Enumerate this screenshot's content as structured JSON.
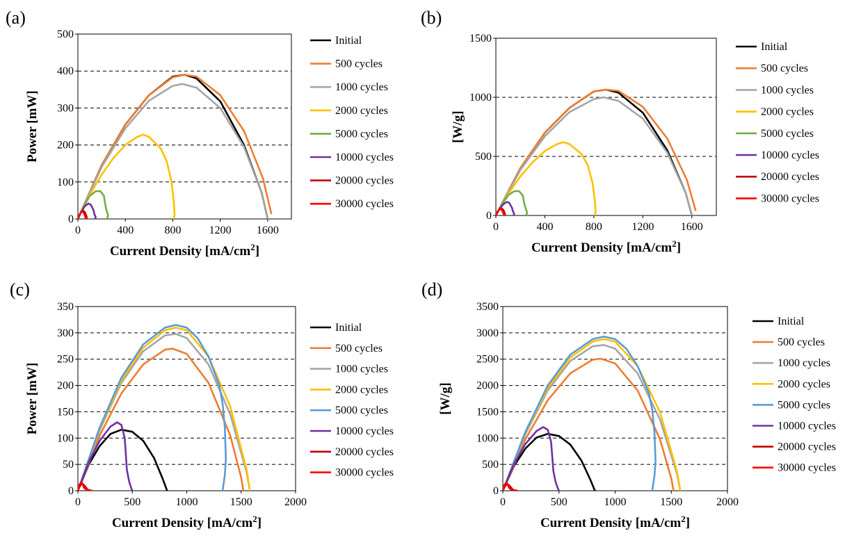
{
  "chart_data": [
    {
      "panel": "(a)",
      "type": "line",
      "title": "",
      "xlabel": "Current Density [mA/cm",
      "xlabel_sup": "2",
      "xlabel_tail": "]",
      "ylabel": "Power [mW]",
      "xlim": [
        0,
        1800
      ],
      "ylim": [
        0,
        500
      ],
      "xticks": [
        0,
        400,
        800,
        1200,
        1600
      ],
      "yticks": [
        0,
        100,
        200,
        300,
        400,
        500
      ],
      "grid": "horizontal dashed",
      "legend": "right",
      "series": [
        {
          "name": "Initial",
          "color": "#000000",
          "x": [
            0,
            200,
            400,
            600,
            800,
            900,
            1000,
            1200,
            1400,
            1550,
            1600
          ],
          "y": [
            0,
            145,
            255,
            335,
            385,
            390,
            380,
            318,
            200,
            70,
            0
          ]
        },
        {
          "name": "500 cycles",
          "color": "#ED7D31",
          "x": [
            0,
            200,
            400,
            600,
            800,
            900,
            1000,
            1200,
            1400,
            1560,
            1630
          ],
          "y": [
            0,
            145,
            255,
            335,
            383,
            390,
            385,
            335,
            238,
            110,
            15
          ]
        },
        {
          "name": "1000 cycles",
          "color": "#A5A5A5",
          "x": [
            0,
            200,
            400,
            600,
            800,
            880,
            1000,
            1200,
            1400,
            1550,
            1600
          ],
          "y": [
            0,
            140,
            245,
            320,
            360,
            365,
            355,
            300,
            195,
            70,
            0
          ]
        },
        {
          "name": "2000 cycles",
          "color": "#FFC000",
          "x": [
            0,
            100,
            200,
            300,
            400,
            500,
            550,
            600,
            700,
            750,
            790,
            810,
            815,
            810,
            805
          ],
          "y": [
            0,
            65,
            120,
            165,
            200,
            222,
            228,
            222,
            190,
            155,
            100,
            40,
            10,
            5,
            0
          ]
        },
        {
          "name": "5000 cycles",
          "color": "#70AD47",
          "x": [
            0,
            50,
            100,
            150,
            190,
            220,
            230,
            240,
            250,
            255,
            250,
            255
          ],
          "y": [
            0,
            35,
            62,
            75,
            75,
            62,
            40,
            25,
            15,
            10,
            5,
            0
          ]
        },
        {
          "name": "10000 cycles",
          "color": "#7030A0",
          "x": [
            0,
            30,
            60,
            90,
            110,
            130,
            140,
            150,
            145
          ],
          "y": [
            0,
            20,
            35,
            42,
            38,
            25,
            12,
            5,
            0
          ]
        },
        {
          "name": "20000 cycles",
          "color": "#C00000",
          "x": [
            0,
            15,
            30,
            45,
            60,
            70,
            75,
            72
          ],
          "y": [
            0,
            12,
            20,
            22,
            18,
            10,
            4,
            0
          ]
        },
        {
          "name": "30000 cycles",
          "color": "#FF0000",
          "x": [
            0,
            12,
            25,
            38,
            50,
            60,
            65,
            62
          ],
          "y": [
            0,
            10,
            18,
            20,
            16,
            8,
            3,
            0
          ]
        }
      ]
    },
    {
      "panel": "(b)",
      "type": "line",
      "title": "",
      "xlabel": "Current Density [mA/cm",
      "xlabel_sup": "2",
      "xlabel_tail": "]",
      "ylabel": "[W/g]",
      "xlim": [
        0,
        1800
      ],
      "ylim": [
        0,
        1500
      ],
      "xticks": [
        0,
        400,
        800,
        1200,
        1600
      ],
      "yticks": [
        0,
        500,
        1000,
        1500
      ],
      "grid": "horizontal dashed",
      "legend": "right",
      "series": [
        {
          "name": "Initial",
          "color": "#000000",
          "x": [
            0,
            200,
            400,
            600,
            800,
            900,
            1000,
            1200,
            1400,
            1550,
            1600
          ],
          "y": [
            0,
            400,
            700,
            910,
            1050,
            1065,
            1040,
            870,
            550,
            190,
            0
          ]
        },
        {
          "name": "500 cycles",
          "color": "#ED7D31",
          "x": [
            0,
            200,
            400,
            600,
            800,
            900,
            1000,
            1200,
            1400,
            1560,
            1630
          ],
          "y": [
            0,
            400,
            700,
            910,
            1050,
            1065,
            1055,
            920,
            650,
            300,
            45
          ]
        },
        {
          "name": "1000 cycles",
          "color": "#A5A5A5",
          "x": [
            0,
            200,
            400,
            600,
            800,
            880,
            1000,
            1200,
            1400,
            1550,
            1600
          ],
          "y": [
            0,
            385,
            670,
            875,
            985,
            1000,
            970,
            820,
            530,
            190,
            0
          ]
        },
        {
          "name": "2000 cycles",
          "color": "#FFC000",
          "x": [
            0,
            100,
            200,
            300,
            400,
            500,
            550,
            600,
            700,
            750,
            790,
            810,
            815,
            810,
            805
          ],
          "y": [
            0,
            180,
            330,
            450,
            545,
            605,
            620,
            605,
            520,
            425,
            275,
            110,
            30,
            12,
            0
          ]
        },
        {
          "name": "5000 cycles",
          "color": "#70AD47",
          "x": [
            0,
            50,
            100,
            150,
            190,
            220,
            230,
            240,
            250,
            255,
            250,
            255
          ],
          "y": [
            0,
            95,
            170,
            205,
            205,
            170,
            110,
            70,
            40,
            25,
            12,
            0
          ]
        },
        {
          "name": "10000 cycles",
          "color": "#7030A0",
          "x": [
            0,
            30,
            60,
            90,
            110,
            130,
            140,
            150,
            145
          ],
          "y": [
            0,
            55,
            95,
            115,
            105,
            68,
            33,
            14,
            0
          ]
        },
        {
          "name": "20000 cycles",
          "color": "#C00000",
          "x": [
            0,
            15,
            30,
            45,
            60,
            70,
            75,
            72
          ],
          "y": [
            0,
            33,
            55,
            60,
            49,
            27,
            11,
            0
          ]
        },
        {
          "name": "30000 cycles",
          "color": "#FF0000",
          "x": [
            0,
            12,
            25,
            38,
            50,
            60,
            65,
            62
          ],
          "y": [
            0,
            27,
            49,
            55,
            44,
            22,
            8,
            0
          ]
        }
      ]
    },
    {
      "panel": "(c)",
      "type": "line",
      "title": "",
      "xlabel": "Current Density [mA/cm",
      "xlabel_sup": "2",
      "xlabel_tail": "]",
      "ylabel": "Power [mW]",
      "xlim": [
        0,
        2000
      ],
      "ylim": [
        0,
        350
      ],
      "xticks": [
        0,
        500,
        1000,
        1500,
        2000
      ],
      "yticks": [
        0,
        50,
        100,
        150,
        200,
        250,
        300,
        350
      ],
      "grid": "horizontal dashed",
      "legend": "right",
      "series": [
        {
          "name": "Initial",
          "color": "#000000",
          "x": [
            0,
            100,
            200,
            300,
            400,
            500,
            600,
            700,
            780,
            820
          ],
          "y": [
            0,
            50,
            85,
            108,
            116,
            112,
            95,
            62,
            22,
            0
          ]
        },
        {
          "name": "500 cycles",
          "color": "#ED7D31",
          "x": [
            0,
            200,
            400,
            600,
            800,
            870,
            1000,
            1200,
            1400,
            1500,
            1520
          ],
          "y": [
            0,
            105,
            185,
            240,
            268,
            270,
            260,
            205,
            105,
            25,
            0
          ]
        },
        {
          "name": "1000 cycles",
          "color": "#A5A5A5",
          "x": [
            0,
            200,
            400,
            600,
            800,
            900,
            1000,
            1200,
            1400,
            1550,
            1580
          ],
          "y": [
            0,
            115,
            205,
            265,
            295,
            298,
            290,
            240,
            145,
            35,
            0
          ]
        },
        {
          "name": "2000 cycles",
          "color": "#FFC000",
          "x": [
            0,
            200,
            400,
            600,
            800,
            900,
            1000,
            1200,
            1400,
            1550,
            1580
          ],
          "y": [
            0,
            118,
            210,
            272,
            305,
            310,
            305,
            255,
            160,
            40,
            0
          ]
        },
        {
          "name": "5000 cycles",
          "color": "#5B9BD5",
          "x": [
            0,
            200,
            400,
            600,
            800,
            900,
            1000,
            1100,
            1200,
            1300,
            1330,
            1350,
            1360,
            1350,
            1340,
            1330
          ],
          "y": [
            0,
            120,
            215,
            278,
            310,
            315,
            310,
            290,
            255,
            200,
            165,
            120,
            60,
            30,
            15,
            0
          ]
        },
        {
          "name": "10000 cycles",
          "color": "#7030A0",
          "x": [
            0,
            100,
            200,
            300,
            360,
            400,
            430,
            440,
            450,
            470,
            490,
            500
          ],
          "y": [
            0,
            55,
            95,
            122,
            130,
            125,
            100,
            70,
            40,
            18,
            5,
            0
          ]
        },
        {
          "name": "20000 cycles",
          "color": "#C00000",
          "x": [
            0,
            15,
            30,
            45,
            60,
            75,
            90,
            100
          ],
          "y": [
            0,
            8,
            12,
            13,
            10,
            6,
            2,
            0
          ]
        },
        {
          "name": "30000 cycles",
          "color": "#FF0000",
          "x": [
            0,
            10,
            25,
            35,
            45,
            55,
            70,
            90,
            110,
            130
          ],
          "y": [
            0,
            10,
            15,
            16,
            12,
            6,
            3,
            2,
            1,
            0
          ]
        }
      ]
    },
    {
      "panel": "(d)",
      "type": "line",
      "title": "",
      "xlabel": "Current Density [mA/cm",
      "xlabel_sup": "2",
      "xlabel_tail": "]",
      "ylabel": "[W/g]",
      "xlim": [
        0,
        2000
      ],
      "ylim": [
        0,
        3500
      ],
      "xticks": [
        0,
        500,
        1000,
        1500,
        2000
      ],
      "yticks": [
        0,
        500,
        1000,
        1500,
        2000,
        2500,
        3000,
        3500
      ],
      "grid": "horizontal dashed",
      "legend": "right",
      "series": [
        {
          "name": "Initial",
          "color": "#000000",
          "x": [
            0,
            100,
            200,
            300,
            400,
            500,
            600,
            700,
            780,
            820
          ],
          "y": [
            0,
            470,
            800,
            1010,
            1080,
            1040,
            880,
            575,
            205,
            0
          ]
        },
        {
          "name": "500 cycles",
          "color": "#ED7D31",
          "x": [
            0,
            200,
            400,
            600,
            800,
            870,
            1000,
            1200,
            1400,
            1500,
            1520
          ],
          "y": [
            0,
            975,
            1720,
            2230,
            2490,
            2510,
            2420,
            1905,
            975,
            230,
            0
          ]
        },
        {
          "name": "1000 cycles",
          "color": "#A5A5A5",
          "x": [
            0,
            200,
            400,
            600,
            800,
            900,
            1000,
            1200,
            1400,
            1550,
            1580
          ],
          "y": [
            0,
            1070,
            1905,
            2465,
            2745,
            2770,
            2700,
            2230,
            1350,
            325,
            0
          ]
        },
        {
          "name": "2000 cycles",
          "color": "#FFC000",
          "x": [
            0,
            200,
            400,
            600,
            800,
            900,
            1000,
            1200,
            1400,
            1550,
            1580
          ],
          "y": [
            0,
            1100,
            1950,
            2530,
            2835,
            2880,
            2835,
            2370,
            1490,
            370,
            0
          ]
        },
        {
          "name": "5000 cycles",
          "color": "#5B9BD5",
          "x": [
            0,
            200,
            400,
            600,
            800,
            900,
            1000,
            1100,
            1200,
            1300,
            1330,
            1350,
            1360,
            1350,
            1340,
            1330
          ],
          "y": [
            0,
            1115,
            2000,
            2585,
            2880,
            2930,
            2880,
            2700,
            2370,
            1860,
            1535,
            1115,
            560,
            280,
            140,
            0
          ]
        },
        {
          "name": "10000 cycles",
          "color": "#7030A0",
          "x": [
            0,
            100,
            200,
            300,
            360,
            400,
            430,
            440,
            450,
            470,
            490,
            500
          ],
          "y": [
            0,
            510,
            885,
            1135,
            1210,
            1160,
            930,
            650,
            370,
            165,
            45,
            0
          ]
        },
        {
          "name": "20000 cycles",
          "color": "#C00000",
          "x": [
            0,
            15,
            30,
            45,
            60,
            75,
            90,
            100
          ],
          "y": [
            0,
            75,
            110,
            120,
            95,
            55,
            20,
            0
          ]
        },
        {
          "name": "30000 cycles",
          "color": "#FF0000",
          "x": [
            0,
            10,
            25,
            35,
            45,
            55,
            70,
            90,
            110,
            130
          ],
          "y": [
            0,
            95,
            140,
            150,
            110,
            55,
            28,
            18,
            9,
            0
          ]
        }
      ]
    }
  ]
}
